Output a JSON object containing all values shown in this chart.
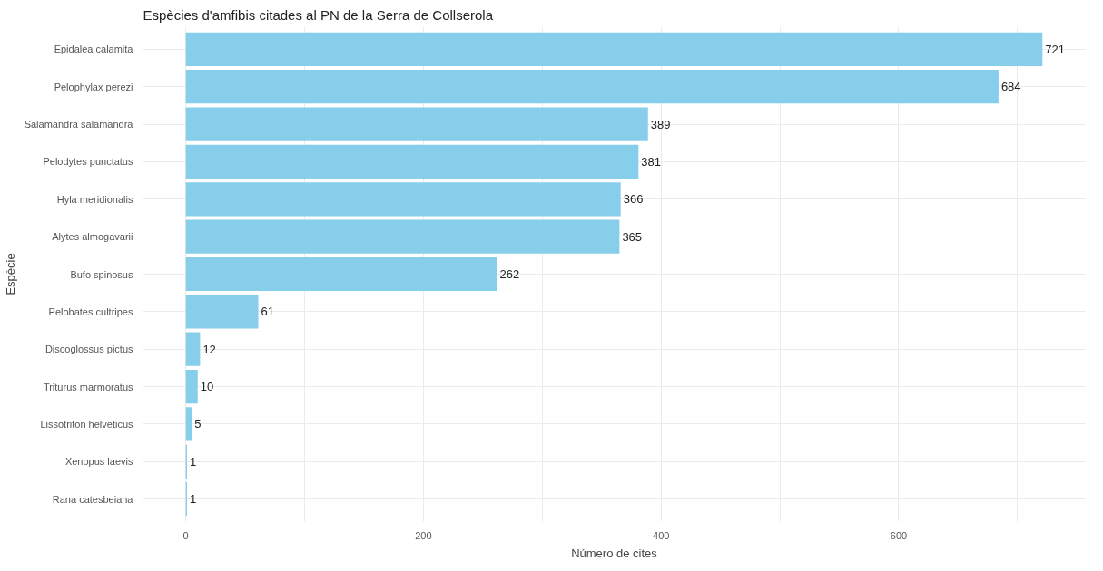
{
  "chart_data": {
    "type": "bar",
    "orientation": "horizontal",
    "title": "Espècies d'amfibis citades al PN de la Serra de Collserola",
    "xlabel": "Número de cites",
    "ylabel": "Espècie",
    "categories": [
      "Epidalea calamita",
      "Pelophylax perezi",
      "Salamandra salamandra",
      "Pelodytes punctatus",
      "Hyla meridionalis",
      "Alytes almogavarii",
      "Bufo spinosus",
      "Pelobates cultripes",
      "Discoglossus pictus",
      "Triturus marmoratus",
      "Lissotriton helveticus",
      "Xenopus laevis",
      "Rana catesbeiana"
    ],
    "values": [
      721,
      684,
      389,
      381,
      366,
      365,
      262,
      61,
      12,
      10,
      5,
      1,
      1
    ],
    "color": "#87ceeb",
    "data_labels": true,
    "grid": true,
    "xlim": [
      -36.05,
      757.05
    ],
    "xticks": [
      0,
      {
        "value": 100,
        "label": null
      },
      200,
      {
        "value": 300,
        "label": null
      },
      400,
      {
        "value": 500,
        "label": null
      },
      600,
      {
        "value": 700,
        "label": null
      }
    ]
  }
}
